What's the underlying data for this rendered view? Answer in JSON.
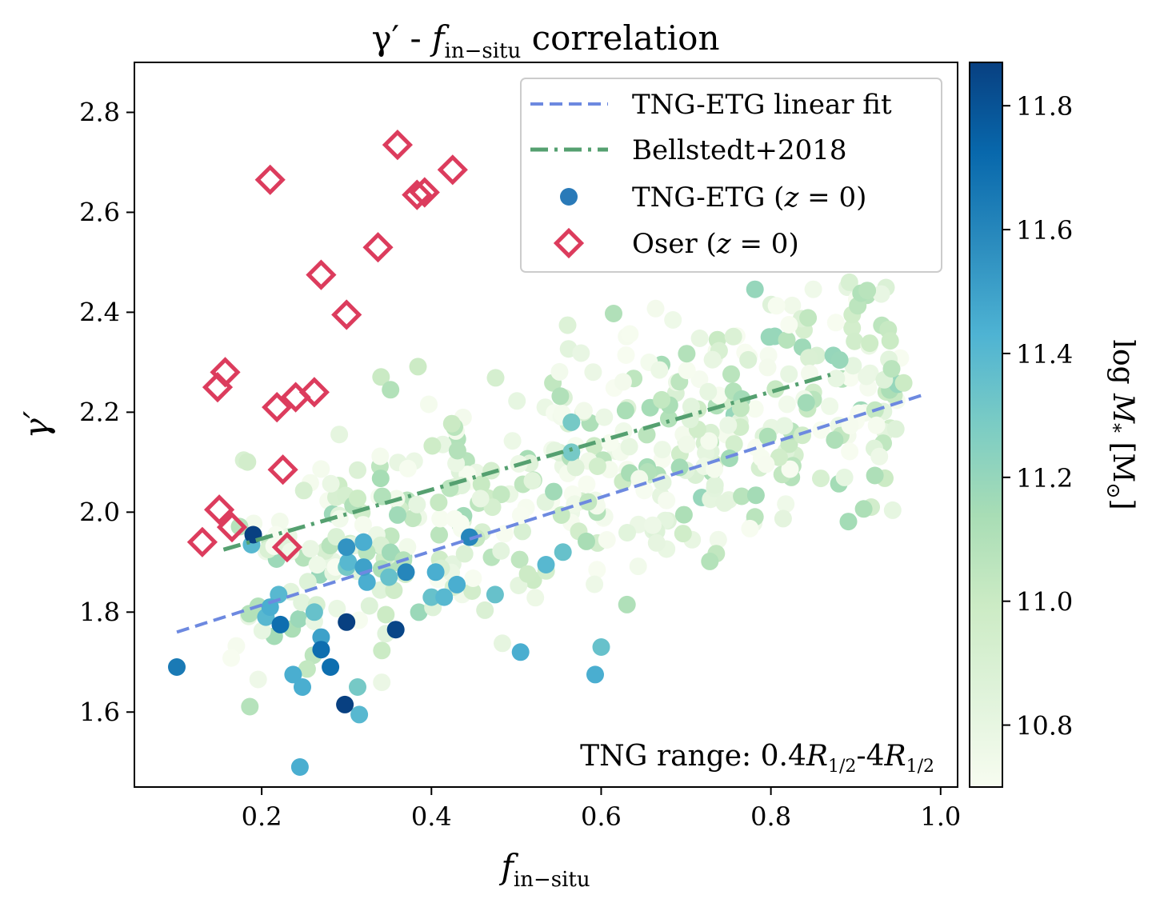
{
  "chart_data": {
    "type": "scatter",
    "title": "γ′ - f_in−situ correlation",
    "title_parts": {
      "symbol": "γ′ - ",
      "f": "f",
      "sub": "in−situ",
      "rest": " correlation"
    },
    "xlabel": "f_in−situ",
    "xlabel_parts": {
      "f": "f",
      "sub": "in−situ"
    },
    "ylabel": "γ′",
    "xlim": [
      0.05,
      1.02
    ],
    "ylim": [
      1.45,
      2.9
    ],
    "xticks": [
      0.2,
      0.4,
      0.6,
      0.8,
      1.0
    ],
    "xtick_labels": [
      "0.2",
      "0.4",
      "0.6",
      "0.8",
      "1.0"
    ],
    "yticks": [
      1.6,
      1.8,
      2.0,
      2.2,
      2.4,
      2.6,
      2.8
    ],
    "ytick_labels": [
      "1.6",
      "1.8",
      "2.0",
      "2.2",
      "2.4",
      "2.6",
      "2.8"
    ],
    "annotation": "TNG range: 0.4R_1/2-4R_1/2",
    "annotation_parts": {
      "prefix": "TNG range: 0.4",
      "r1": "R",
      "s1": "1/2",
      "mid": "-4",
      "r2": "R",
      "s2": "1/2"
    },
    "legend": {
      "position": "top-right",
      "entries": [
        "TNG-ETG linear fit",
        "Bellstedt+2018",
        "TNG-ETG (z = 0)",
        "Oser (z = 0)"
      ]
    },
    "colorbar": {
      "label": "log M_* [M_⊙]",
      "label_parts": {
        "prefix": "log ",
        "m": "M",
        "sub": "*",
        "mid": " [M",
        "sun": "⊙",
        "end": "]"
      },
      "range": [
        10.7,
        11.87
      ],
      "ticks": [
        10.8,
        11.0,
        11.2,
        11.4,
        11.6,
        11.8
      ],
      "tick_labels": [
        "10.8",
        "11.0",
        "11.2",
        "11.4",
        "11.6",
        "11.8"
      ]
    },
    "colors": {
      "fit_line": "#6d89e0",
      "bellstedt_line": "#55a070",
      "oser_marker": "#dc3c5d",
      "legend_tng_marker": "#2a7ab8",
      "colormap": [
        "#f7fcf0",
        "#e0f3db",
        "#ccebc5",
        "#a8ddb5",
        "#7bccc4",
        "#4eb3d3",
        "#2b8cbe",
        "#0868ac",
        "#084081"
      ]
    },
    "series": [
      {
        "name": "TNG-ETG linear fit",
        "kind": "line",
        "style": "dashed",
        "x": [
          0.1,
          0.98
        ],
        "y": [
          1.76,
          2.235
        ]
      },
      {
        "name": "Bellstedt+2018",
        "kind": "line",
        "style": "dashdot",
        "x": [
          0.155,
          0.87
        ],
        "y": [
          1.925,
          2.275
        ]
      },
      {
        "name": "Oser (z = 0)",
        "kind": "scatter",
        "marker": "diamond-open",
        "x": [
          0.13,
          0.15,
          0.165,
          0.23,
          0.225,
          0.148,
          0.157,
          0.218,
          0.24,
          0.262,
          0.3,
          0.27,
          0.337,
          0.21,
          0.36,
          0.383,
          0.392,
          0.425
        ],
        "y": [
          1.94,
          2.005,
          1.97,
          1.93,
          2.085,
          2.25,
          2.28,
          2.21,
          2.23,
          2.24,
          2.395,
          2.475,
          2.53,
          2.665,
          2.735,
          2.635,
          2.64,
          2.685
        ]
      },
      {
        "name": "TNG-ETG (z = 0) — high mass",
        "kind": "scatter",
        "marker": "circle",
        "x": [
          0.1,
          0.19,
          0.188,
          0.22,
          0.21,
          0.205,
          0.222,
          0.237,
          0.248,
          0.262,
          0.27,
          0.27,
          0.281,
          0.298,
          0.3,
          0.313,
          0.315,
          0.32,
          0.32,
          0.324,
          0.3,
          0.302,
          0.358,
          0.37,
          0.35,
          0.4,
          0.405,
          0.43,
          0.415,
          0.445,
          0.475,
          0.505,
          0.535,
          0.555,
          0.565,
          0.593,
          0.6,
          0.565,
          0.245,
          0.3
        ],
        "y": [
          1.69,
          1.955,
          1.935,
          1.835,
          1.81,
          1.79,
          1.775,
          1.675,
          1.65,
          1.8,
          1.75,
          1.725,
          1.69,
          1.615,
          1.78,
          1.65,
          1.595,
          1.94,
          1.89,
          1.86,
          1.93,
          1.9,
          1.765,
          1.88,
          1.87,
          1.83,
          1.88,
          1.855,
          1.83,
          1.95,
          1.835,
          1.72,
          1.895,
          1.92,
          2.18,
          1.675,
          1.73,
          2.12,
          1.49,
          1.89
        ],
        "mass": [
          11.65,
          11.87,
          11.4,
          11.4,
          11.45,
          11.4,
          11.7,
          11.45,
          11.45,
          11.35,
          11.5,
          11.7,
          11.7,
          11.87,
          11.87,
          11.3,
          11.4,
          11.45,
          11.5,
          11.45,
          11.55,
          11.4,
          11.85,
          11.6,
          11.35,
          11.35,
          11.45,
          11.45,
          11.4,
          11.6,
          11.35,
          11.45,
          11.4,
          11.35,
          11.3,
          11.45,
          11.35,
          11.3,
          11.45,
          11.3
        ]
      },
      {
        "name": "TNG-ETG (z = 0) — low mass",
        "kind": "scatter",
        "marker": "circle",
        "generated": true,
        "count": 470,
        "x_range": [
          0.13,
          0.96
        ],
        "mass_range": [
          10.7,
          11.2
        ]
      }
    ]
  }
}
